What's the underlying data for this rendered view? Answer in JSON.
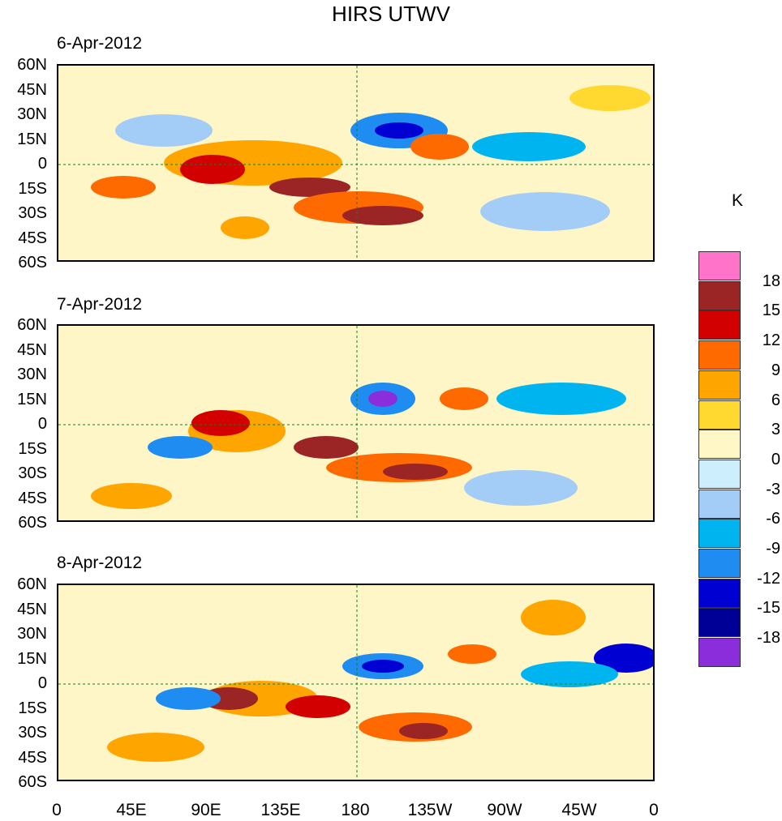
{
  "title": "HIRS UTWV",
  "panels": [
    {
      "date": "6-Apr-2012"
    },
    {
      "date": "7-Apr-2012"
    },
    {
      "date": "8-Apr-2012"
    }
  ],
  "lat_labels": [
    "60N",
    "45N",
    "30N",
    "15N",
    "0",
    "15S",
    "30S",
    "45S",
    "60S"
  ],
  "lon_labels": [
    "0",
    "45E",
    "90E",
    "135E",
    "180",
    "135W",
    "90W",
    "45W",
    "0"
  ],
  "colorbar": {
    "unit": "K",
    "labels": [
      "18",
      "15",
      "12",
      "9",
      "6",
      "3",
      "0",
      "-3",
      "-6",
      "-9",
      "-12",
      "-15",
      "-18"
    ],
    "colors": [
      "#ff73c8",
      "#9b2525",
      "#d20000",
      "#ff6a00",
      "#ffa500",
      "#ffd930",
      "#fff8c6",
      "#cdeefc",
      "#a3ccf7",
      "#00b4f0",
      "#1e8cf0",
      "#0000d2",
      "#000096",
      "#8c2ddc"
    ]
  }
}
